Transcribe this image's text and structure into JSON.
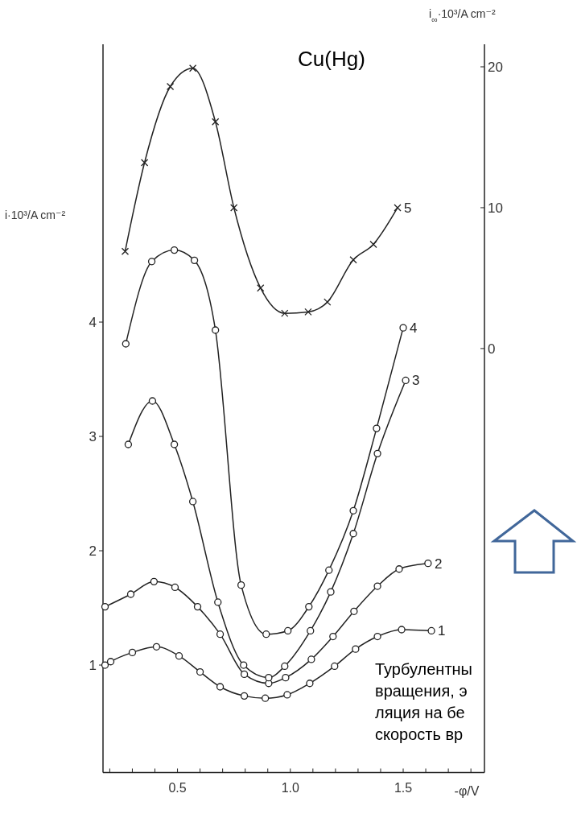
{
  "chart_data": {
    "type": "line",
    "title": "Cu(Hg)",
    "xlabel": "-φ/V",
    "ylabel": "i·10³/A cm⁻²",
    "y2label": "i$_{∞}$·10³/A cm⁻²",
    "xlim": [
      0.17,
      1.86
    ],
    "xticks": [
      {
        "value": 0.2,
        "label": null
      },
      {
        "value": 0.3,
        "label": null
      },
      {
        "value": 0.4,
        "label": null
      },
      {
        "value": 0.5,
        "label": "0.5"
      },
      {
        "value": 0.6,
        "label": null
      },
      {
        "value": 0.7,
        "label": null
      },
      {
        "value": 0.8,
        "label": null
      },
      {
        "value": 0.9,
        "label": null
      },
      {
        "value": 1.0,
        "label": "1.0"
      },
      {
        "value": 1.1,
        "label": null
      },
      {
        "value": 1.2,
        "label": null
      },
      {
        "value": 1.3,
        "label": null
      },
      {
        "value": 1.4,
        "label": null
      },
      {
        "value": 1.5,
        "label": "1.5"
      },
      {
        "value": 1.6,
        "label": null
      },
      {
        "value": 1.7,
        "label": null
      },
      {
        "value": 1.8,
        "label": null
      }
    ],
    "ylim": [
      0.06,
      6.43
    ],
    "yticks": [
      1,
      2,
      3,
      4
    ],
    "y2lim": [
      -30.1,
      21.6
    ],
    "y2ticks": [
      0,
      10,
      20
    ],
    "marker": "circle",
    "line_style": "solid",
    "grid": false,
    "series": [
      {
        "name": "1",
        "color": "#222222",
        "x": [
          0.179,
          0.204,
          0.3,
          0.407,
          0.507,
          0.6,
          0.689,
          0.796,
          0.889,
          0.986,
          1.086,
          1.196,
          1.289,
          1.386,
          1.493,
          1.625
        ],
        "values": [
          1.0,
          1.03,
          1.11,
          1.16,
          1.08,
          0.94,
          0.81,
          0.73,
          0.71,
          0.74,
          0.84,
          0.99,
          1.14,
          1.25,
          1.31,
          1.3
        ]
      },
      {
        "name": "2",
        "color": "#222222",
        "x": [
          0.179,
          0.293,
          0.396,
          0.489,
          0.589,
          0.689,
          0.796,
          0.904,
          0.979,
          1.093,
          1.189,
          1.282,
          1.386,
          1.482,
          1.61
        ],
        "values": [
          1.51,
          1.62,
          1.73,
          1.68,
          1.51,
          1.27,
          0.92,
          0.84,
          0.89,
          1.05,
          1.25,
          1.47,
          1.69,
          1.84,
          1.89
        ]
      },
      {
        "name": "3",
        "color": "#222222",
        "x": [
          0.282,
          0.389,
          0.486,
          0.568,
          0.679,
          0.793,
          0.904,
          0.975,
          1.089,
          1.179,
          1.279,
          1.386,
          1.511
        ],
        "values": [
          2.93,
          3.31,
          2.93,
          2.43,
          1.55,
          1.0,
          0.89,
          0.99,
          1.3,
          1.64,
          2.15,
          2.85,
          3.49
        ]
      },
      {
        "name": "4",
        "color": "#222222",
        "x": [
          0.271,
          0.386,
          0.486,
          0.575,
          0.668,
          0.782,
          0.893,
          0.989,
          1.082,
          1.171,
          1.279,
          1.382,
          1.5
        ],
        "values": [
          3.81,
          4.53,
          4.63,
          4.54,
          3.93,
          1.7,
          1.27,
          1.3,
          1.51,
          1.83,
          2.35,
          3.07,
          3.95
        ]
      },
      {
        "name": "5",
        "color": "#222222",
        "marker": "cross",
        "axis": "y2",
        "x": [
          0.268,
          0.354,
          0.468,
          0.568,
          0.668,
          0.75,
          0.868,
          0.975,
          1.079,
          1.164,
          1.279,
          1.368,
          1.475
        ],
        "values": [
          6.9,
          13.2,
          18.6,
          19.9,
          16.1,
          10.0,
          4.3,
          2.5,
          2.6,
          3.3,
          6.3,
          7.4,
          10.0
        ]
      }
    ],
    "annotations": [
      "Турбулентны\nвращения, э\nляция на бе\nскорость вр"
    ]
  }
}
